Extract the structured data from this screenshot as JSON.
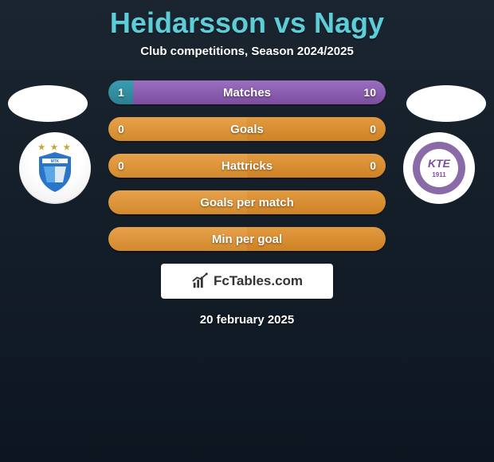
{
  "title": "Heidarsson vs Nagy",
  "subtitle": "Club competitions, Season 2024/2025",
  "title_color": "#5dcdd8",
  "left_color": "#3a9db2",
  "right_color": "#9b6fbf",
  "neutral_color": "#e39a3f",
  "crest_left": {
    "name": "MTK",
    "shield_fill": "#2a74c9",
    "accent": "#ffffff",
    "stars": "★ ★ ★"
  },
  "crest_right": {
    "name": "KTE",
    "ring_fill": "#8b6aa8",
    "year": "1911"
  },
  "bars": [
    {
      "label": "Matches",
      "left_val": "1",
      "right_val": "10",
      "left_pct": 9,
      "right_pct": 91,
      "scheme": "split"
    },
    {
      "label": "Goals",
      "left_val": "0",
      "right_val": "0",
      "left_pct": 50,
      "right_pct": 50,
      "scheme": "neutral"
    },
    {
      "label": "Hattricks",
      "left_val": "0",
      "right_val": "0",
      "left_pct": 50,
      "right_pct": 50,
      "scheme": "neutral"
    },
    {
      "label": "Goals per match",
      "left_val": "",
      "right_val": "",
      "left_pct": 50,
      "right_pct": 50,
      "scheme": "neutral"
    },
    {
      "label": "Min per goal",
      "left_val": "",
      "right_val": "",
      "left_pct": 50,
      "right_pct": 50,
      "scheme": "neutral"
    }
  ],
  "logo_text": "FcTables.com",
  "date": "20 february 2025"
}
